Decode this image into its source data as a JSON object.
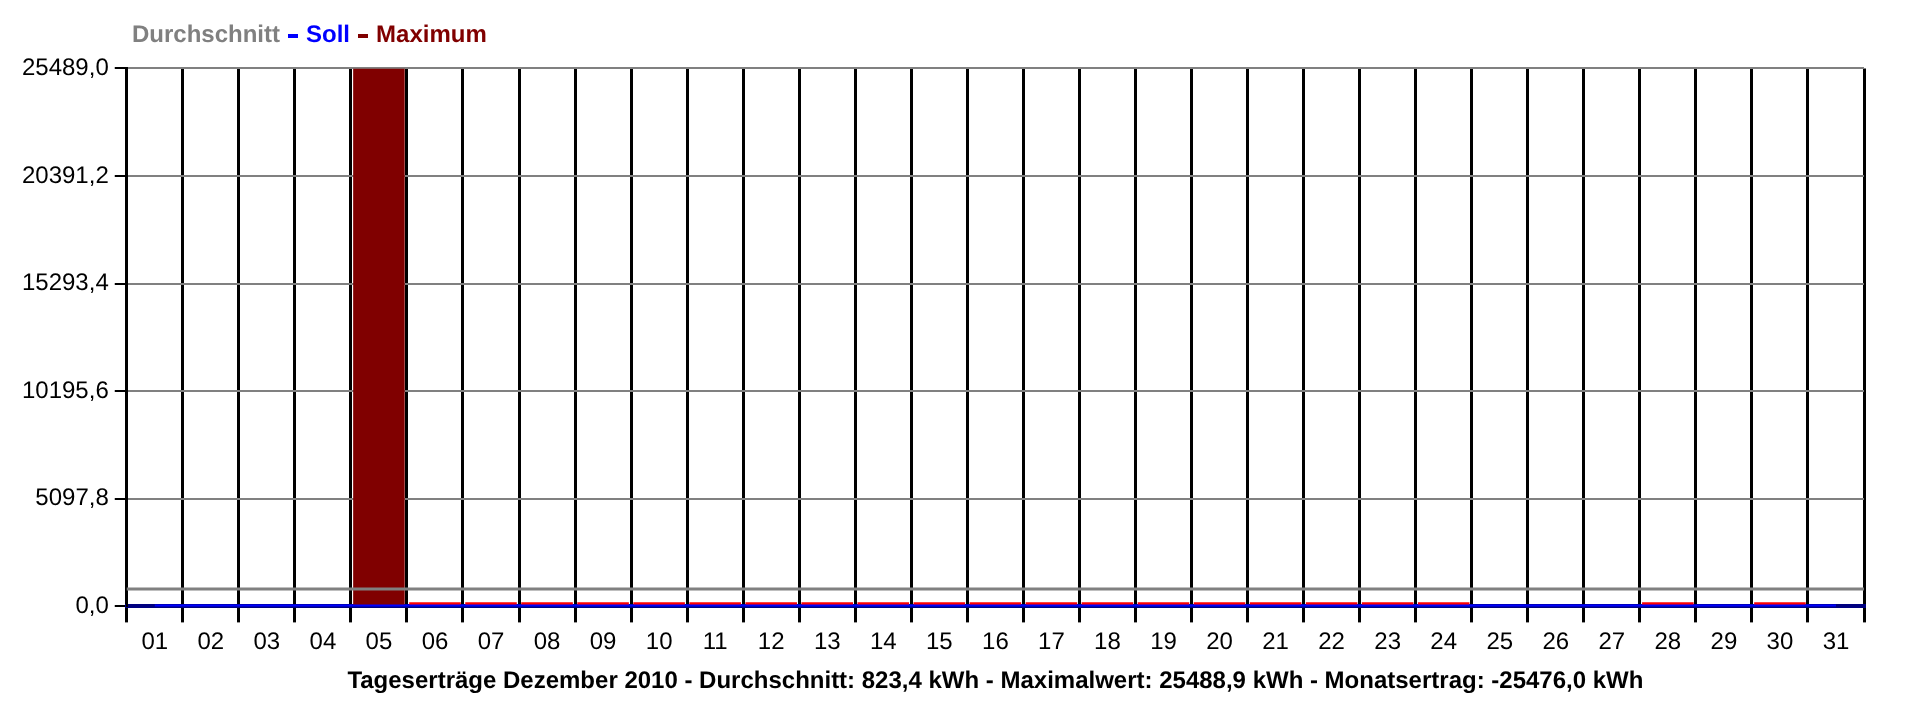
{
  "chart_data": {
    "type": "bar",
    "xlabel": "Tageserträge Dezember 2010 - Durchschnitt: 823,4 kWh - Maximalwert: 25488,9 kWh - Monatsertrag: -25476,0 kWh",
    "categories": [
      "01",
      "02",
      "03",
      "04",
      "05",
      "06",
      "07",
      "08",
      "09",
      "10",
      "11",
      "12",
      "13",
      "14",
      "15",
      "16",
      "17",
      "18",
      "19",
      "20",
      "21",
      "22",
      "23",
      "24",
      "25",
      "26",
      "27",
      "28",
      "29",
      "30",
      "31"
    ],
    "series": [
      {
        "name": "Soll",
        "type": "line",
        "color": "#0000ff",
        "values": [
          0,
          0,
          0,
          0,
          0,
          0,
          0,
          0,
          0,
          0,
          0,
          0,
          0,
          0,
          0,
          0,
          0,
          0,
          0,
          0,
          0,
          0,
          0,
          0,
          0,
          0,
          0,
          0,
          0,
          0,
          0
        ]
      },
      {
        "name": "Maximum",
        "color": "#800000",
        "values": [
          null,
          null,
          null,
          null,
          25488.9,
          null,
          null,
          null,
          null,
          null,
          null,
          null,
          null,
          null,
          null,
          null,
          null,
          null,
          null,
          null,
          null,
          null,
          null,
          null,
          null,
          null,
          null,
          null,
          null,
          null,
          null
        ]
      },
      {
        "color": "#ff0000",
        "values": [
          0,
          0,
          0,
          0,
          null,
          200,
          200,
          200,
          200,
          200,
          200,
          200,
          200,
          200,
          200,
          200,
          200,
          200,
          200,
          200,
          200,
          200,
          200,
          200,
          0,
          0,
          0,
          200,
          0,
          200,
          0
        ]
      }
    ],
    "ref_lines": [
      {
        "axis": "y",
        "value": 823.4,
        "label": "Durchschnitt",
        "color": "#808080"
      }
    ],
    "ylim": [
      0,
      25489
    ],
    "yticks": [
      {
        "value": 0,
        "label": "0,0"
      },
      {
        "value": 5097.8,
        "label": "5097,8"
      },
      {
        "value": 10195.6,
        "label": "10195,6"
      },
      {
        "value": 15293.4,
        "label": "15293,4"
      },
      {
        "value": 20391.2,
        "label": "20391,2"
      },
      {
        "value": 25489,
        "label": "25489,0"
      }
    ],
    "grid": true,
    "legend": "top left",
    "line_style": "solid",
    "marker": "none"
  }
}
